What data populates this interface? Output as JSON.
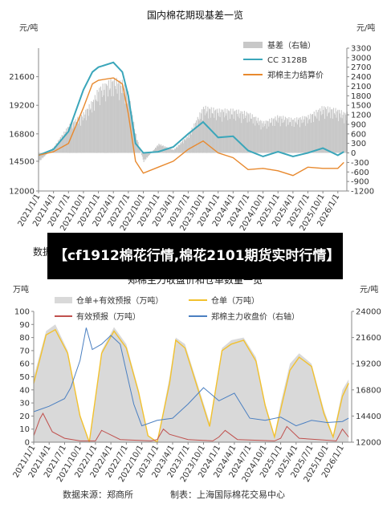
{
  "banner": {
    "text": "【cf1912棉花行情,棉花2101期货实时行情】"
  },
  "footer": {
    "source": "数据来源：郑商所",
    "producer": "制表：上海国际棉花交易中心"
  },
  "top_left_fragment": "数据",
  "colors": {
    "basis_bar": "#c8c8c8",
    "cc3128b": "#3aa6ba",
    "zce_cotton": "#e8892e",
    "warrant_area": "#d9d9d9",
    "warrant_line": "#f2c12e",
    "forecast": "#c0504d",
    "close": "#4a7fc1"
  },
  "chart_data": [
    {
      "type": "line",
      "title": "国内棉花期现基差一览",
      "ylabel": "元/吨",
      "y2label": "元/吨",
      "ylim": [
        12000,
        24000
      ],
      "y2lim": [
        -1200,
        3300
      ],
      "yticks": [
        "12000",
        "14500",
        "16800",
        "19200",
        "21600"
      ],
      "y2ticks": [
        "3300",
        "3000",
        "2700",
        "2400",
        "2100",
        "1800",
        "1500",
        "1200",
        "900",
        "600",
        "300",
        "0",
        "-300",
        "-600",
        "-900",
        "-1200"
      ],
      "xticks": [
        "2021/1/1",
        "2021/4/1",
        "2021/7/1",
        "2021/10/1",
        "2022/1/1",
        "2022/4/1",
        "2022/7/1",
        "2022/10/1",
        "2023/1/1",
        "2023/4/1",
        "2023/7/1",
        "2023/10/1",
        "2024/1/1",
        "2024/4/1",
        "2024/7/1",
        "2024/10/1",
        "2025/1/1",
        "2025/4/1",
        "2025/7/1",
        "2025/10/1",
        "2026/1/1"
      ],
      "legend_position": "top-right",
      "series": [
        {
          "name": "基差（右轴）",
          "type": "bar",
          "axis": "right",
          "x": [
            2021.0,
            2021.25,
            2021.5,
            2021.75,
            2021.9,
            2022.0,
            2022.25,
            2022.4,
            2022.5,
            2022.62,
            2022.75,
            2023.0,
            2023.25,
            2023.5,
            2023.75,
            2024.0,
            2024.25,
            2024.5,
            2024.75,
            2025.0,
            2025.25,
            2025.5,
            2025.75,
            2026.0,
            2026.1
          ],
          "values": [
            -300,
            200,
            900,
            1300,
            1700,
            2100,
            2400,
            2300,
            1900,
            600,
            -300,
            300,
            100,
            600,
            1500,
            1400,
            1400,
            1300,
            1000,
            1200,
            1100,
            1200,
            1500,
            1400,
            1300
          ]
        },
        {
          "name": "CC 3128B",
          "type": "line",
          "axis": "left",
          "x": [
            2021.0,
            2021.25,
            2021.5,
            2021.75,
            2021.9,
            2022.0,
            2022.25,
            2022.4,
            2022.5,
            2022.62,
            2022.75,
            2023.0,
            2023.25,
            2023.5,
            2023.75,
            2024.0,
            2024.25,
            2024.5,
            2024.75,
            2025.0,
            2025.25,
            2025.5,
            2025.75,
            2026.0,
            2026.1
          ],
          "values": [
            15000,
            15500,
            17000,
            20500,
            22000,
            22400,
            22800,
            22000,
            20000,
            16000,
            15200,
            15300,
            15700,
            16800,
            17800,
            16500,
            16600,
            15400,
            14900,
            15300,
            14900,
            15200,
            15600,
            15000,
            15300
          ]
        },
        {
          "name": "郑棉主力结算价",
          "type": "line",
          "axis": "left",
          "x": [
            2021.0,
            2021.25,
            2021.5,
            2021.75,
            2021.9,
            2022.0,
            2022.25,
            2022.4,
            2022.5,
            2022.62,
            2022.75,
            2023.0,
            2023.25,
            2023.5,
            2023.75,
            2024.0,
            2024.25,
            2024.5,
            2024.75,
            2025.0,
            2025.25,
            2025.5,
            2025.75,
            2026.0,
            2026.1
          ],
          "values": [
            15000,
            15300,
            16000,
            19000,
            21000,
            21300,
            21500,
            21000,
            18500,
            14500,
            13500,
            14000,
            14500,
            15500,
            16200,
            15200,
            14800,
            13800,
            13900,
            13700,
            13300,
            14000,
            13900,
            13900,
            14400
          ]
        }
      ]
    },
    {
      "type": "line",
      "title": "郑棉主力收盘价和仓单数量一览",
      "ylabel": "万吨",
      "y2label": "元/吨",
      "ylim": [
        0,
        100
      ],
      "y2lim": [
        12000,
        24000
      ],
      "yticks": [
        "0",
        "10",
        "20",
        "30",
        "40",
        "50",
        "60",
        "70",
        "80",
        "90",
        "100"
      ],
      "y2ticks": [
        "12000",
        "14400",
        "16800",
        "19200",
        "21600",
        "24000"
      ],
      "xticks": [
        "2021/1/1",
        "2021/4/1",
        "2021/7/1",
        "2021/10/1",
        "2022/1/1",
        "2022/4/1",
        "2022/7/1",
        "2022/10/1",
        "2023/1/1",
        "2023/4/1",
        "2023/7/1",
        "2023/10/1",
        "2024/1/1",
        "2024/4/1",
        "2024/7/1",
        "2024/10/1",
        "2025/1/1",
        "2025/4/1",
        "2025/7/1",
        "2025/10/1",
        "2026/1/1"
      ],
      "legend_position": "top",
      "series": [
        {
          "name": "仓单+有效预报（万吨）",
          "type": "area",
          "axis": "left",
          "x": [
            2021.0,
            2021.2,
            2021.35,
            2021.55,
            2021.75,
            2021.9,
            2022.1,
            2022.3,
            2022.5,
            2022.7,
            2022.85,
            2023.0,
            2023.2,
            2023.3,
            2023.45,
            2023.65,
            2023.85,
            2024.05,
            2024.2,
            2024.4,
            2024.6,
            2024.75,
            2024.9,
            2025.0,
            2025.15,
            2025.3,
            2025.5,
            2025.7,
            2025.85,
            2026.0,
            2026.1
          ],
          "values": [
            50,
            85,
            90,
            70,
            20,
            0,
            70,
            88,
            75,
            40,
            5,
            0,
            50,
            80,
            75,
            45,
            15,
            72,
            78,
            80,
            65,
            30,
            5,
            30,
            60,
            68,
            60,
            25,
            5,
            40,
            48
          ]
        },
        {
          "name": "仓单（万吨）",
          "type": "line",
          "axis": "left",
          "x": [
            2021.0,
            2021.2,
            2021.35,
            2021.55,
            2021.75,
            2021.9,
            2022.1,
            2022.3,
            2022.5,
            2022.7,
            2022.85,
            2023.0,
            2023.2,
            2023.3,
            2023.45,
            2023.65,
            2023.85,
            2024.05,
            2024.2,
            2024.4,
            2024.6,
            2024.75,
            2024.9,
            2025.0,
            2025.15,
            2025.3,
            2025.5,
            2025.7,
            2025.85,
            2026.0,
            2026.1
          ],
          "values": [
            45,
            82,
            86,
            68,
            20,
            0,
            68,
            85,
            72,
            38,
            5,
            0,
            45,
            78,
            72,
            42,
            12,
            70,
            75,
            78,
            62,
            28,
            4,
            25,
            55,
            65,
            58,
            22,
            4,
            35,
            45
          ]
        },
        {
          "name": "有效预报（万吨）",
          "type": "line",
          "axis": "left",
          "x": [
            2021.0,
            2021.1,
            2021.15,
            2021.3,
            2021.5,
            2021.75,
            2022.0,
            2022.1,
            2022.4,
            2022.9,
            2023.0,
            2023.1,
            2023.2,
            2023.5,
            2023.9,
            2024.0,
            2024.1,
            2024.3,
            2024.9,
            2025.0,
            2025.1,
            2025.3,
            2025.9,
            2026.0,
            2026.1
          ],
          "values": [
            5,
            18,
            22,
            8,
            3,
            1,
            1,
            9,
            2,
            1,
            2,
            10,
            6,
            2,
            1,
            4,
            9,
            2,
            1,
            3,
            12,
            3,
            1,
            10,
            4
          ]
        },
        {
          "name": "郑棉主力收盘价（右轴）",
          "type": "line",
          "axis": "right",
          "x": [
            2021.0,
            2021.25,
            2021.5,
            2021.6,
            2021.75,
            2021.85,
            2021.95,
            2022.1,
            2022.25,
            2022.4,
            2022.5,
            2022.62,
            2022.75,
            2023.0,
            2023.25,
            2023.5,
            2023.75,
            2024.0,
            2024.25,
            2024.5,
            2024.75,
            2025.0,
            2025.25,
            2025.5,
            2025.75,
            2026.0,
            2026.1
          ],
          "values": [
            14800,
            15300,
            16000,
            17000,
            19500,
            22500,
            20500,
            21000,
            21800,
            21000,
            18500,
            15500,
            13500,
            14000,
            14200,
            15500,
            17000,
            15800,
            16500,
            14200,
            14000,
            14300,
            13500,
            14000,
            13800,
            13900,
            14200
          ]
        }
      ]
    }
  ]
}
